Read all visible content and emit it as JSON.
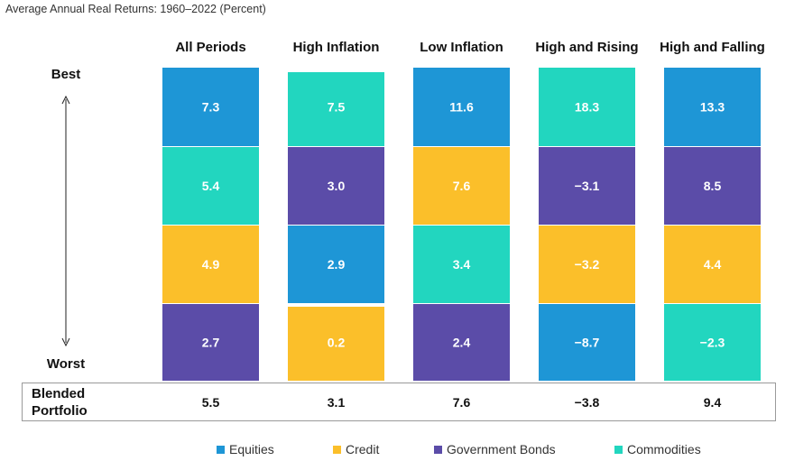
{
  "subtitle": "Average Annual Real Returns: 1960–2022 (Percent)",
  "best_label": "Best",
  "worst_label": "Worst",
  "blended_label": [
    "Blended",
    "Portfolio"
  ],
  "colors": {
    "Equities": "#1E96D6",
    "Credit": "#FBBF2A",
    "Government Bonds": "#5B4CA8",
    "Commodities": "#22D6BF"
  },
  "chart_data": {
    "type": "table",
    "title": "Average Annual Real Returns: 1960–2022 (Percent)",
    "columns": [
      {
        "name": "All Periods",
        "ranked": [
          {
            "asset": "Equities",
            "value": "7.3"
          },
          {
            "asset": "Commodities",
            "value": "5.4"
          },
          {
            "asset": "Credit",
            "value": "4.9"
          },
          {
            "asset": "Government Bonds",
            "value": "2.7"
          }
        ],
        "blended": "5.5"
      },
      {
        "name": "High Inflation",
        "ranked": [
          {
            "asset": "Commodities",
            "value": "7.5"
          },
          {
            "asset": "Government Bonds",
            "value": "3.0"
          },
          {
            "asset": "Equities",
            "value": "2.9"
          },
          {
            "asset": "Credit",
            "value": "0.2"
          }
        ],
        "blended": "3.1"
      },
      {
        "name": "Low Inflation",
        "ranked": [
          {
            "asset": "Equities",
            "value": "11.6"
          },
          {
            "asset": "Credit",
            "value": "7.6"
          },
          {
            "asset": "Commodities",
            "value": "3.4"
          },
          {
            "asset": "Government Bonds",
            "value": "2.4"
          }
        ],
        "blended": "7.6"
      },
      {
        "name": "High and Rising",
        "ranked": [
          {
            "asset": "Commodities",
            "value": "18.3"
          },
          {
            "asset": "Government Bonds",
            "value": "−3.1"
          },
          {
            "asset": "Credit",
            "value": "−3.2"
          },
          {
            "asset": "Equities",
            "value": "−8.7"
          }
        ],
        "blended": "−3.8"
      },
      {
        "name": "High and Falling",
        "ranked": [
          {
            "asset": "Equities",
            "value": "13.3"
          },
          {
            "asset": "Government Bonds",
            "value": "8.5"
          },
          {
            "asset": "Credit",
            "value": "4.4"
          },
          {
            "asset": "Commodities",
            "value": "−2.3"
          }
        ],
        "blended": "9.4"
      }
    ],
    "legend": [
      "Equities",
      "Credit",
      "Government Bonds",
      "Commodities"
    ],
    "legend_position": "bottom"
  }
}
